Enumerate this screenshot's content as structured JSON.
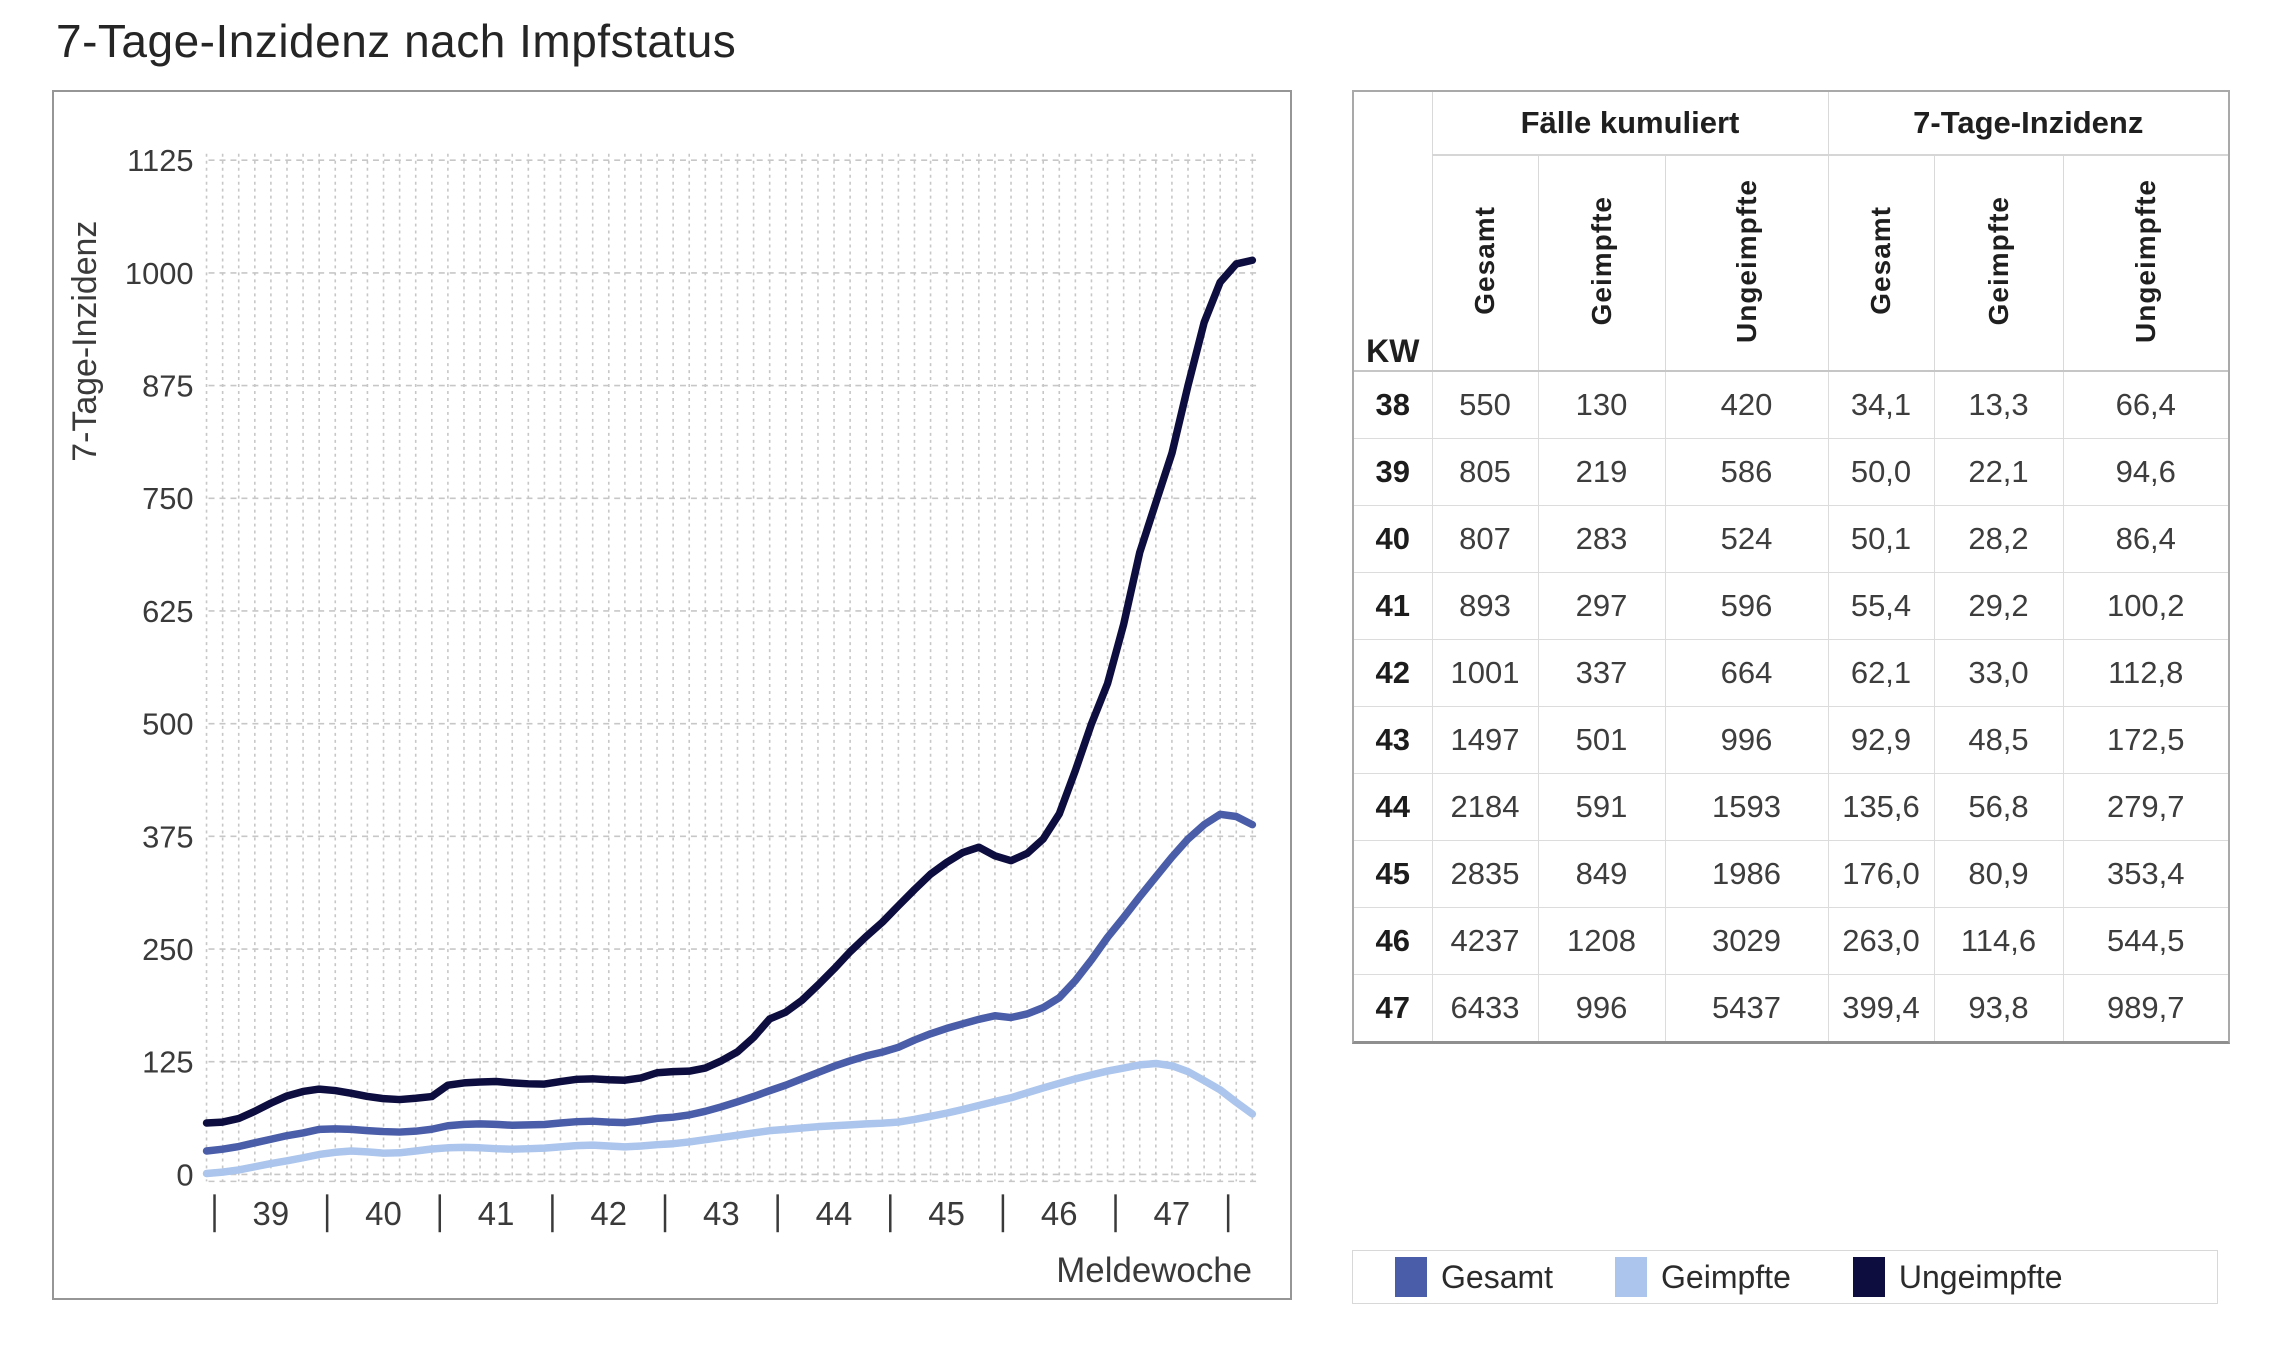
{
  "title": "7-Tage-Inzidenz nach Impfstatus",
  "chart_data": {
    "type": "line",
    "title": "7-Tage-Inzidenz nach Impfstatus",
    "xlabel": "Meldewoche",
    "ylabel": "7-Tage-Inzidenz",
    "y_ticks": [
      0,
      125,
      250,
      375,
      500,
      625,
      750,
      875,
      1000,
      1125
    ],
    "ylim": [
      0,
      1170
    ],
    "x_week_labels": [
      "39",
      "40",
      "41",
      "42",
      "43",
      "44",
      "45",
      "46",
      "47"
    ],
    "x_resolution": "daily (7-day rolling incidence), 66 points spanning end of week 38 through end of week 47; axis ticks mark ISO week boundaries",
    "grid": {
      "vertical": "dashed, one line per day",
      "horizontal": "dashed, every 125 units",
      "color": "#c7c7c7"
    },
    "legend_position": "separate bordered box at bottom right",
    "series": [
      {
        "name": "Gesamt",
        "color": "#4a5da8",
        "weekly_incidence_at_week_end": [
          34.1,
          50.0,
          50.1,
          55.4,
          62.1,
          92.9,
          135.6,
          176.0,
          263.0,
          399.4
        ],
        "daily_values": [
          26,
          28,
          31,
          35,
          39,
          43,
          46,
          50,
          50.5,
          50,
          48.5,
          47.5,
          47,
          48,
          50.1,
          54,
          55.5,
          56,
          55.5,
          54.5,
          55,
          55.4,
          57,
          58.5,
          59,
          58,
          57.5,
          59.5,
          62.1,
          63.5,
          66,
          70,
          75,
          80.5,
          86.5,
          92.9,
          99,
          106,
          113,
          120,
          126,
          131.5,
          135.6,
          141,
          149,
          156,
          162,
          167,
          172,
          176,
          174,
          178,
          185,
          196,
          215,
          238,
          263,
          285,
          308,
          330,
          352,
          372,
          388,
          399.4,
          397,
          388
        ]
      },
      {
        "name": "Geimpfte",
        "color": "#abc5ec",
        "weekly_incidence_at_week_end": [
          13.3,
          22.1,
          28.2,
          29.2,
          33.0,
          48.5,
          56.8,
          80.9,
          114.6,
          93.8
        ],
        "daily_values": [
          1,
          2.5,
          5,
          8.5,
          12,
          15,
          18.5,
          22.1,
          24.5,
          26,
          25,
          23.5,
          24,
          26,
          28.2,
          29.5,
          30,
          29.5,
          28.5,
          28,
          28.5,
          29.2,
          30.5,
          32,
          32.5,
          31.5,
          30.5,
          31.5,
          33,
          34,
          36,
          38.5,
          41,
          43.5,
          46,
          48.5,
          50,
          51.5,
          53,
          54,
          55,
          56,
          56.8,
          58,
          61,
          64.5,
          68,
          72,
          76.5,
          80.9,
          85,
          90.5,
          96,
          101,
          106,
          110.5,
          114.6,
          118,
          121.5,
          123,
          120.5,
          114,
          104,
          93.8,
          80,
          67
        ]
      },
      {
        "name": "Ungeimpfte",
        "color": "#0d0d40",
        "weekly_incidence_at_week_end": [
          66.4,
          94.6,
          86.4,
          100.2,
          112.8,
          172.5,
          279.7,
          353.4,
          544.5,
          989.7
        ],
        "daily_values": [
          57,
          58,
          62,
          70,
          79,
          87,
          92,
          94.6,
          93,
          90,
          86.5,
          84,
          83,
          84.5,
          86.4,
          99,
          101.5,
          102.5,
          103,
          101.5,
          100.5,
          100.2,
          103,
          105.5,
          106,
          105,
          104.5,
          107,
          112.8,
          114,
          114.5,
          118,
          126,
          136,
          152,
          172.5,
          180,
          193,
          210,
          228,
          247,
          264,
          279.7,
          298,
          316,
          333,
          346,
          357,
          363,
          353.4,
          348,
          356,
          372,
          400,
          448,
          500,
          544.5,
          610,
          690,
          745,
          800,
          875,
          945,
          989.7,
          1010,
          1014
        ]
      }
    ]
  },
  "table": {
    "kw_label": "KW",
    "group_headers": [
      "Fälle kumuliert",
      "7-Tage-Inzidenz"
    ],
    "sub_headers": [
      "Gesamt",
      "Geimpfte",
      "Ungeimpfte"
    ],
    "rows": [
      {
        "kw": "38",
        "cum": [
          "550",
          "130",
          "420"
        ],
        "inc": [
          "34,1",
          "13,3",
          "66,4"
        ]
      },
      {
        "kw": "39",
        "cum": [
          "805",
          "219",
          "586"
        ],
        "inc": [
          "50,0",
          "22,1",
          "94,6"
        ]
      },
      {
        "kw": "40",
        "cum": [
          "807",
          "283",
          "524"
        ],
        "inc": [
          "50,1",
          "28,2",
          "86,4"
        ]
      },
      {
        "kw": "41",
        "cum": [
          "893",
          "297",
          "596"
        ],
        "inc": [
          "55,4",
          "29,2",
          "100,2"
        ]
      },
      {
        "kw": "42",
        "cum": [
          "1001",
          "337",
          "664"
        ],
        "inc": [
          "62,1",
          "33,0",
          "112,8"
        ]
      },
      {
        "kw": "43",
        "cum": [
          "1497",
          "501",
          "996"
        ],
        "inc": [
          "92,9",
          "48,5",
          "172,5"
        ]
      },
      {
        "kw": "44",
        "cum": [
          "2184",
          "591",
          "1593"
        ],
        "inc": [
          "135,6",
          "56,8",
          "279,7"
        ]
      },
      {
        "kw": "45",
        "cum": [
          "2835",
          "849",
          "1986"
        ],
        "inc": [
          "176,0",
          "80,9",
          "353,4"
        ]
      },
      {
        "kw": "46",
        "cum": [
          "4237",
          "1208",
          "3029"
        ],
        "inc": [
          "263,0",
          "114,6",
          "544,5"
        ]
      },
      {
        "kw": "47",
        "cum": [
          "6433",
          "996",
          "5437"
        ],
        "inc": [
          "399,4",
          "93,8",
          "989,7"
        ]
      }
    ]
  },
  "legend": {
    "items": [
      {
        "label": "Gesamt",
        "color": "#4a5da8"
      },
      {
        "label": "Geimpfte",
        "color": "#abc5ec"
      },
      {
        "label": "Ungeimpfte",
        "color": "#0d0d40"
      }
    ]
  }
}
